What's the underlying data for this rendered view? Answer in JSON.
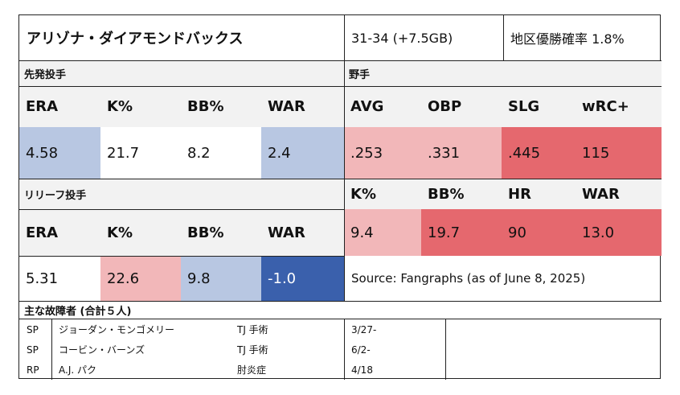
{
  "colors": {
    "header_bg": "#f2f2f2",
    "light_blue": "#b8c7e2",
    "dark_blue": "#3a60ac",
    "light_red": "#f2b7b9",
    "red": "#e5686e"
  },
  "header": {
    "team": "アリゾナ・ダイアモンドバックス",
    "record": "31-34 (+7.5GB)",
    "division_odds": "地区優勝確率 1.8%"
  },
  "starting_pitchers": {
    "label": "先発投手",
    "headers": [
      "ERA",
      "K%",
      "BB%",
      "WAR"
    ],
    "values": [
      "4.58",
      "21.7",
      "8.2",
      "2.4"
    ]
  },
  "fielders": {
    "label": "野手",
    "headers": [
      "AVG",
      "OBP",
      "SLG",
      "wRC+"
    ],
    "values": [
      ".253",
      ".331",
      ".445",
      "115"
    ],
    "headers2": [
      "K%",
      "BB%",
      "HR",
      "WAR"
    ],
    "values2": [
      "9.4",
      "19.7",
      "90",
      "13.0"
    ]
  },
  "relief_pitchers": {
    "label": "リリーフ投手",
    "headers": [
      "ERA",
      "K%",
      "BB%",
      "WAR"
    ],
    "values": [
      "5.31",
      "22.6",
      "9.8",
      "-1.0"
    ]
  },
  "source": "Source: Fangraphs (as of June 8, 2025)",
  "injuries": {
    "label": "主な故障者 (合計５人)",
    "rows": [
      {
        "pos": "SP",
        "name": "ジョーダン・モンゴメリー",
        "reason": "TJ 手術",
        "date": "3/27-"
      },
      {
        "pos": "SP",
        "name": "コービン・バーンズ",
        "reason": "TJ 手術",
        "date": "6/2-"
      },
      {
        "pos": "RP",
        "name": "A.J. パク",
        "reason": "肘炎症",
        "date": "4/18"
      }
    ]
  }
}
